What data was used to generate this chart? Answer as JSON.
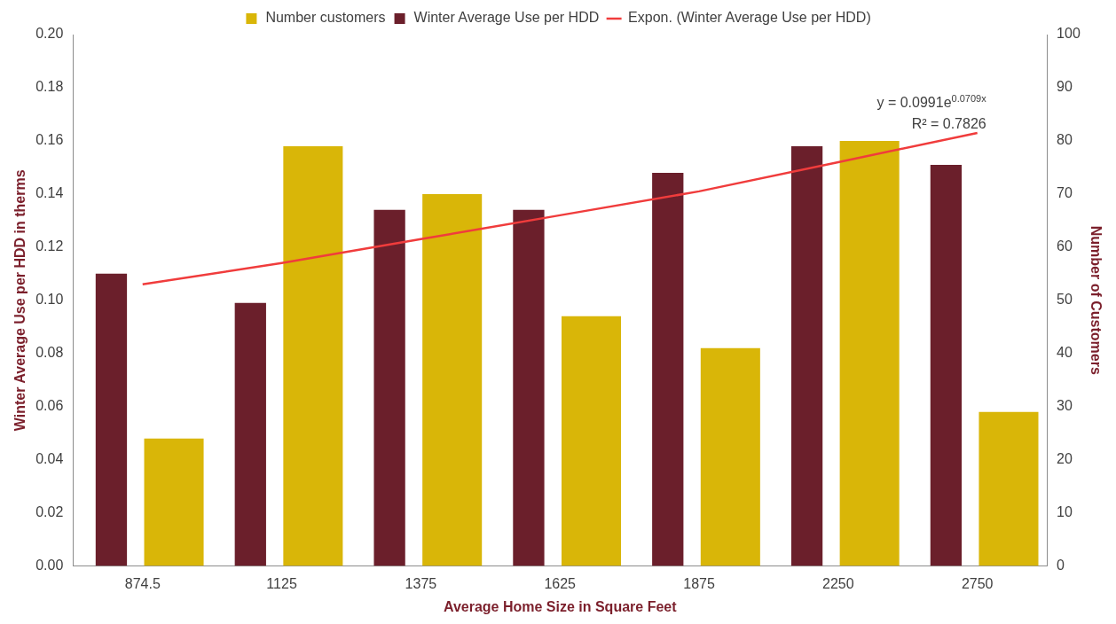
{
  "chart_data": {
    "type": "bar",
    "categories": [
      "874.5",
      "1125",
      "1375",
      "1625",
      "1875",
      "2250",
      "2750"
    ],
    "xlabel": "Average Home Size in Square Feet",
    "ylabel": "Winter Average Use per HDD in therms",
    "y2label": "Number of Customers",
    "ylim": [
      0,
      0.2
    ],
    "yticks": [
      {
        "value": 0,
        "label": "0.00"
      },
      {
        "value": 0.02,
        "label": "0.02"
      },
      {
        "value": 0.04,
        "label": "0.04"
      },
      {
        "value": 0.06,
        "label": "0.06"
      },
      {
        "value": 0.08,
        "label": "0.08"
      },
      {
        "value": 0.1,
        "label": "0.10"
      },
      {
        "value": 0.12,
        "label": "0.12"
      },
      {
        "value": 0.14,
        "label": "0.14"
      },
      {
        "value": 0.16,
        "label": "0.16"
      },
      {
        "value": 0.18,
        "label": "0.18"
      },
      {
        "value": 0.2,
        "label": "0.20"
      }
    ],
    "y2lim": [
      0,
      100
    ],
    "y2ticks": [
      0,
      10,
      20,
      30,
      40,
      50,
      60,
      70,
      80,
      90,
      100
    ],
    "series": [
      {
        "name": "Number customers",
        "color": "#d9b608",
        "axis": "y2",
        "values": [
          24,
          79,
          70,
          47,
          41,
          80,
          29
        ]
      },
      {
        "name": "Winter Average Use per HDD",
        "color": "#6b1f2b",
        "values": [
          0.11,
          0.099,
          0.134,
          0.134,
          0.148,
          0.158,
          0.151
        ]
      },
      {
        "name": "Expon. (Winter Average Use per HDD)",
        "type": "line",
        "color": "#f03c3c",
        "values": [
          0.106,
          0.114,
          0.123,
          0.132,
          0.141,
          0.152,
          0.163
        ]
      }
    ],
    "annotations": [
      "y = 0.0991e$^{0.0709x}$",
      "R² = 0.7826"
    ],
    "marker": "none",
    "legend": "top",
    "grid": false
  }
}
